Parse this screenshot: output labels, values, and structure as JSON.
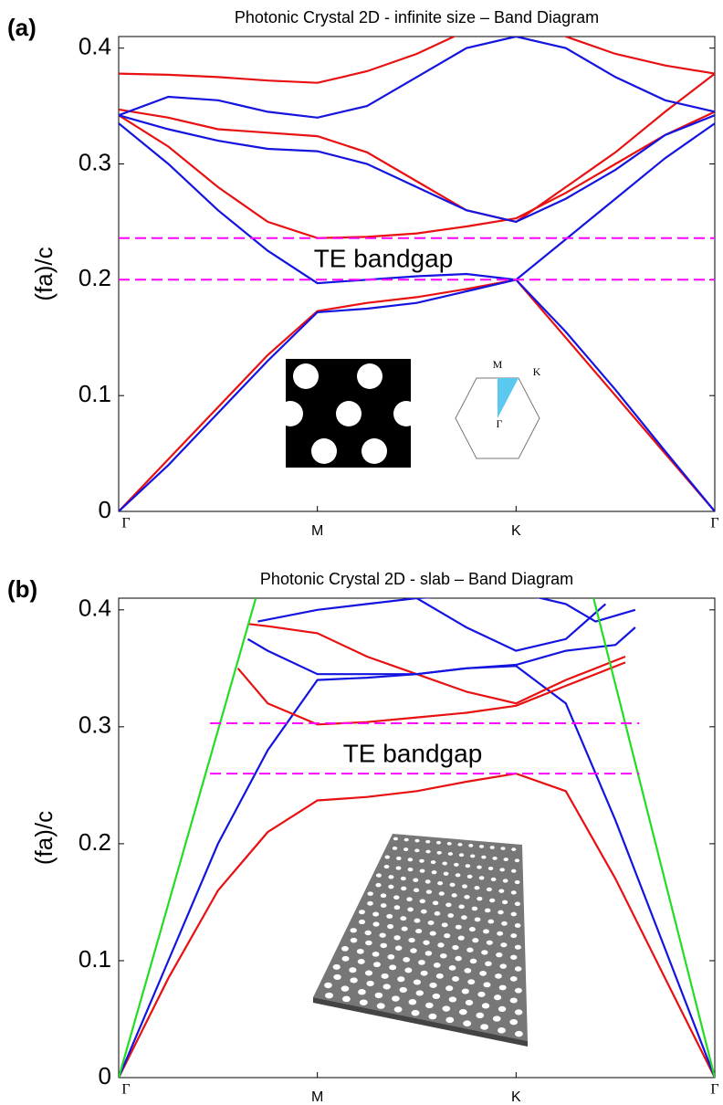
{
  "chart_data": [
    {
      "type": "line",
      "panel": "(a)",
      "title": "Photonic Crystal 2D - infinite size – Band Diagram",
      "ylabel": "(fa)/c",
      "annotations": [
        "TE bandgap"
      ],
      "inset_labels": [
        "M",
        "K",
        "Γ"
      ],
      "xlim": [
        0,
        3
      ],
      "xticks": [
        {
          "value": 0,
          "label": "Γ"
        },
        {
          "value": 1,
          "label": "M"
        },
        {
          "value": 2,
          "label": "K"
        },
        {
          "value": 3,
          "label": "Γ"
        }
      ],
      "ylim": [
        0,
        0.41
      ],
      "yticks": [
        0,
        0.1,
        0.2,
        0.3,
        0.4
      ],
      "series": [
        {
          "color": "#e81010",
          "x": [
            0,
            0.25,
            0.5,
            0.75,
            1,
            1.25,
            1.5,
            1.75,
            2,
            2.25,
            2.5,
            2.75,
            3
          ],
          "values": [
            0,
            0.045,
            0.09,
            0.135,
            0.173,
            0.18,
            0.185,
            0.192,
            0.2,
            0.15,
            0.1,
            0.05,
            0
          ]
        },
        {
          "color": "#1414e0",
          "x": [
            0,
            0.25,
            0.5,
            0.75,
            1,
            1.25,
            1.5,
            1.75,
            2,
            2.25,
            2.5,
            2.75,
            3
          ],
          "values": [
            0,
            0.04,
            0.085,
            0.13,
            0.172,
            0.175,
            0.18,
            0.19,
            0.2,
            0.155,
            0.105,
            0.052,
            0
          ]
        },
        {
          "color": "#1414e0",
          "x": [
            0,
            0.25,
            0.5,
            0.75,
            1,
            1.25,
            1.5,
            1.75,
            2,
            2.25,
            2.5,
            2.75,
            3
          ],
          "values": [
            0.335,
            0.3,
            0.26,
            0.225,
            0.197,
            0.2,
            0.203,
            0.205,
            0.2,
            0.235,
            0.27,
            0.305,
            0.335
          ]
        },
        {
          "color": "#e81010",
          "x": [
            0,
            0.25,
            0.5,
            0.75,
            1,
            1.25,
            1.5,
            1.75,
            2,
            2.25,
            2.5,
            2.75,
            3
          ],
          "values": [
            0.342,
            0.315,
            0.28,
            0.25,
            0.236,
            0.237,
            0.24,
            0.246,
            0.253,
            0.275,
            0.3,
            0.325,
            0.345
          ]
        },
        {
          "color": "#e81010",
          "x": [
            0,
            0.25,
            0.5,
            0.75,
            1,
            1.25,
            1.5,
            1.75,
            2,
            2.25,
            2.5,
            2.75,
            3
          ],
          "values": [
            0.347,
            0.34,
            0.33,
            0.327,
            0.324,
            0.31,
            0.285,
            0.26,
            0.25,
            0.28,
            0.31,
            0.345,
            0.378
          ]
        },
        {
          "color": "#1414e0",
          "x": [
            0,
            0.25,
            0.5,
            0.75,
            1,
            1.25,
            1.5,
            1.75,
            2,
            2.25,
            2.5,
            2.75,
            3
          ],
          "values": [
            0.342,
            0.33,
            0.32,
            0.313,
            0.311,
            0.3,
            0.28,
            0.26,
            0.25,
            0.27,
            0.295,
            0.325,
            0.342
          ]
        },
        {
          "color": "#1414e0",
          "x": [
            0,
            0.25,
            0.5,
            0.75,
            1,
            1.25,
            1.5,
            1.75,
            2,
            2.25,
            2.5,
            2.75,
            3
          ],
          "values": [
            0.342,
            0.358,
            0.355,
            0.345,
            0.34,
            0.35,
            0.375,
            0.4,
            0.41,
            0.4,
            0.375,
            0.355,
            0.345
          ]
        },
        {
          "color": "#e81010",
          "x": [
            0,
            0.25,
            0.5,
            0.75,
            1,
            1.25,
            1.5,
            1.75,
            2,
            2.25,
            2.5,
            2.75,
            3
          ],
          "values": [
            0.378,
            0.377,
            0.375,
            0.372,
            0.37,
            0.38,
            0.395,
            0.415,
            0.43,
            0.41,
            0.395,
            0.385,
            0.378
          ]
        },
        {
          "color": "#ff00ff",
          "dashed": true,
          "x": [
            0,
            3
          ],
          "values": [
            0.236,
            0.236
          ]
        },
        {
          "color": "#ff00ff",
          "dashed": true,
          "x": [
            0,
            3
          ],
          "values": [
            0.2,
            0.2
          ]
        }
      ]
    },
    {
      "type": "line",
      "panel": "(b)",
      "title": "Photonic Crystal 2D - slab – Band Diagram",
      "ylabel": "(fa)/c",
      "annotations": [
        "TE bandgap"
      ],
      "xlim": [
        0,
        3
      ],
      "xticks": [
        {
          "value": 0,
          "label": "Γ"
        },
        {
          "value": 1,
          "label": "M"
        },
        {
          "value": 2,
          "label": "K"
        },
        {
          "value": 3,
          "label": "Γ"
        }
      ],
      "ylim": [
        0,
        0.41
      ],
      "yticks": [
        0,
        0.1,
        0.2,
        0.3,
        0.4
      ],
      "series": [
        {
          "color": "#e81010",
          "x": [
            0,
            0.25,
            0.5,
            0.75,
            1,
            1.25,
            1.5,
            1.75,
            2,
            2.25,
            2.5,
            2.75,
            3
          ],
          "values": [
            0,
            0.085,
            0.16,
            0.21,
            0.237,
            0.24,
            0.245,
            0.253,
            0.26,
            0.245,
            0.17,
            0.085,
            0
          ]
        },
        {
          "color": "#1414e0",
          "x": [
            0,
            0.25,
            0.5,
            0.75,
            1,
            1.25,
            1.5,
            1.75,
            2,
            2.25,
            2.5,
            2.75,
            3
          ],
          "values": [
            0,
            0.1,
            0.2,
            0.28,
            0.34,
            0.342,
            0.345,
            0.35,
            0.352,
            0.32,
            0.22,
            0.11,
            0
          ]
        },
        {
          "color": "#e81010",
          "x": [
            0.6,
            0.75,
            1,
            1.25,
            1.5,
            1.75,
            2,
            2.25,
            2.55
          ],
          "values": [
            0.35,
            0.32,
            0.302,
            0.304,
            0.308,
            0.312,
            0.318,
            0.335,
            0.355
          ]
        },
        {
          "color": "#e81010",
          "x": [
            0.65,
            0.75,
            1,
            1.25,
            1.5,
            1.75,
            2,
            2.25,
            2.55
          ],
          "values": [
            0.388,
            0.386,
            0.38,
            0.36,
            0.345,
            0.33,
            0.32,
            0.34,
            0.36
          ]
        },
        {
          "color": "#1414e0",
          "x": [
            0.65,
            0.75,
            1,
            1.25,
            1.5,
            1.75,
            2,
            2.25,
            2.5,
            2.6
          ],
          "values": [
            0.375,
            0.365,
            0.345,
            0.345,
            0.345,
            0.35,
            0.353,
            0.365,
            0.37,
            0.385
          ]
        },
        {
          "color": "#1414e0",
          "x": [
            0.7,
            1,
            1.25,
            1.5,
            2,
            2.25,
            2.4,
            2.6
          ],
          "values": [
            0.39,
            0.4,
            0.405,
            0.41,
            0.415,
            0.405,
            0.39,
            0.4
          ]
        },
        {
          "color": "#1414e0",
          "x": [
            1.2,
            1.5,
            1.75,
            2,
            2.25,
            2.45
          ],
          "values": [
            0.415,
            0.41,
            0.385,
            0.365,
            0.375,
            0.405
          ]
        },
        {
          "color": "#22dd22",
          "x": [
            0,
            0.69
          ],
          "values": [
            0,
            0.41
          ]
        },
        {
          "color": "#22dd22",
          "x": [
            2.39,
            3
          ],
          "values": [
            0.41,
            0
          ]
        },
        {
          "color": "#ff00ff",
          "dashed": true,
          "x": [
            0.46,
            2.62
          ],
          "values": [
            0.303,
            0.303
          ]
        },
        {
          "color": "#ff00ff",
          "dashed": true,
          "x": [
            0.46,
            2.62
          ],
          "values": [
            0.26,
            0.26
          ]
        }
      ]
    }
  ]
}
